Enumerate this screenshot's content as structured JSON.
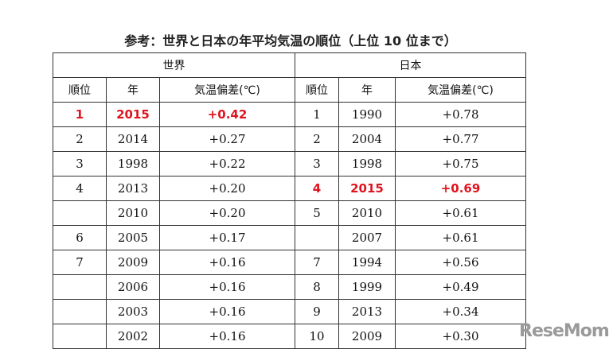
{
  "title": "参考：世界と日本の年平均気温の順位（上位 10 位まで）",
  "table": {
    "groups": [
      "世界",
      "日本"
    ],
    "columns": [
      "順位",
      "年",
      "気温偏差(℃)",
      "順位",
      "年",
      "気温偏差(℃)"
    ],
    "rows": [
      [
        1,
        2015,
        "+0.42",
        1,
        1990,
        "+0.78"
      ],
      [
        2,
        2014,
        "+0.27",
        2,
        2004,
        "+0.77"
      ],
      [
        3,
        1998,
        "+0.22",
        3,
        1998,
        "+0.75"
      ],
      [
        4,
        2013,
        "+0.20",
        4,
        2015,
        "+0.69"
      ],
      [
        null,
        2010,
        "+0.20",
        5,
        2010,
        "+0.61"
      ],
      [
        6,
        2005,
        "+0.17",
        null,
        2007,
        "+0.61"
      ],
      [
        7,
        2009,
        "+0.16",
        7,
        1994,
        "+0.56"
      ],
      [
        null,
        2006,
        "+0.16",
        8,
        1999,
        "+0.49"
      ],
      [
        null,
        2003,
        "+0.16",
        9,
        2013,
        "+0.34"
      ],
      [
        null,
        2002,
        "+0.16",
        10,
        2009,
        "+0.30"
      ]
    ]
  },
  "watermark": "ReseMom"
}
